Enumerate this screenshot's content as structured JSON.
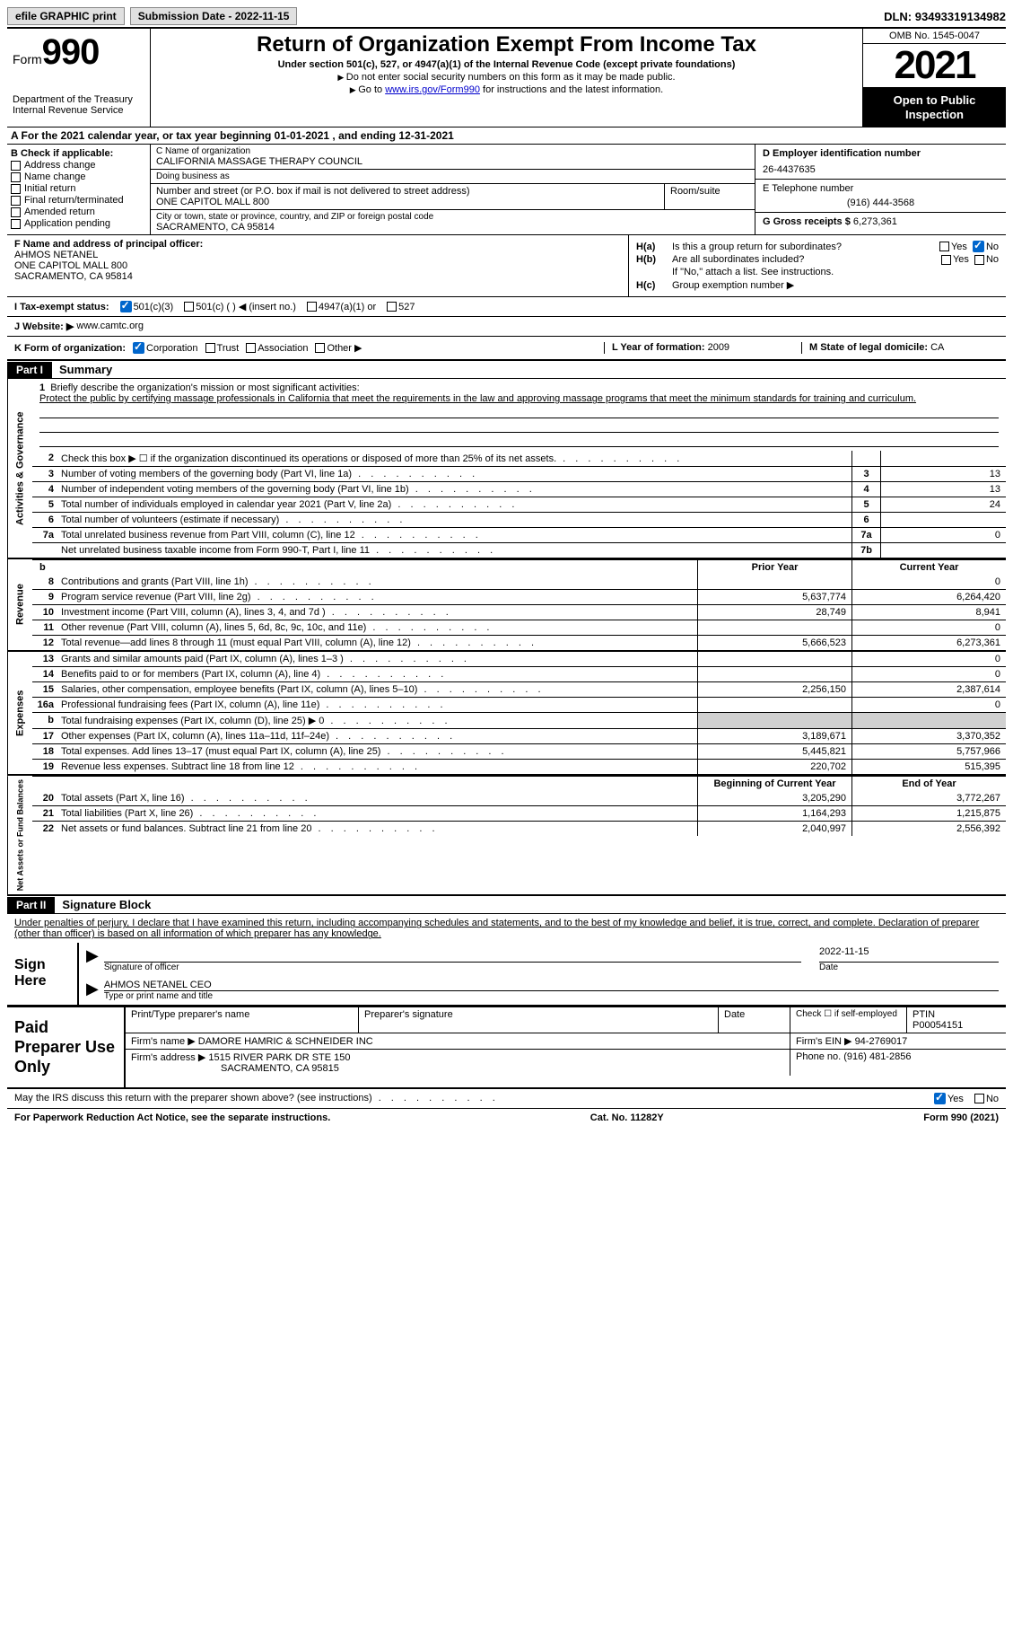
{
  "meta": {
    "dln_label": "DLN:",
    "dln": "93493319134982",
    "efile_btn": "efile GRAPHIC print",
    "sub_date_label": "Submission Date -",
    "sub_date": "2022-11-15",
    "form_word": "Form",
    "form_num": "990",
    "title": "Return of Organization Exempt From Income Tax",
    "subtitle": "Under section 501(c), 527, or 4947(a)(1) of the Internal Revenue Code (except private foundations)",
    "note1": "Do not enter social security numbers on this form as it may be made public.",
    "note2_pre": "Go to ",
    "note2_link": "www.irs.gov/Form990",
    "note2_post": " for instructions and the latest information.",
    "dept": "Department of the Treasury",
    "irs": "Internal Revenue Service",
    "omb": "OMB No. 1545-0047",
    "year": "2021",
    "open_inspect": "Open to Public Inspection"
  },
  "sectionA": {
    "text_pre": "A For the 2021 calendar year, or tax year beginning ",
    "begin": "01-01-2021",
    "mid": " , and ending ",
    "end": "12-31-2021"
  },
  "colB": {
    "header": "B Check if applicable:",
    "items": [
      "Address change",
      "Name change",
      "Initial return",
      "Final return/terminated",
      "Amended return",
      "Application pending"
    ]
  },
  "colC": {
    "name_lbl": "C Name of organization",
    "name": "CALIFORNIA MASSAGE THERAPY COUNCIL",
    "dba_lbl": "Doing business as",
    "dba": "",
    "addr_lbl": "Number and street (or P.O. box if mail is not delivered to street address)",
    "room_lbl": "Room/suite",
    "addr": "ONE CAPITOL MALL 800",
    "city_lbl": "City or town, state or province, country, and ZIP or foreign postal code",
    "city": "SACRAMENTO, CA  95814"
  },
  "colD": {
    "ein_lbl": "D Employer identification number",
    "ein": "26-4437635",
    "tel_lbl": "E Telephone number",
    "tel": "(916) 444-3568",
    "gross_lbl": "G Gross receipts $",
    "gross": "6,273,361"
  },
  "rowF": {
    "lbl": "F Name and address of principal officer:",
    "name": "AHMOS NETANEL",
    "addr1": "ONE CAPITOL MALL 800",
    "addr2": "SACRAMENTO, CA  95814"
  },
  "rowH": {
    "ha_lbl": "H(a)",
    "ha_txt": "Is this a group return for subordinates?",
    "hb_lbl": "H(b)",
    "hb_txt": "Are all subordinates included?",
    "hb_note": "If \"No,\" attach a list. See instructions.",
    "hc_lbl": "H(c)",
    "hc_txt": "Group exemption number ▶",
    "yes": "Yes",
    "no": "No"
  },
  "rowI": {
    "lbl": "I  Tax-exempt status:",
    "opts": [
      "501(c)(3)",
      "501(c) (  ) ◀ (insert no.)",
      "4947(a)(1) or",
      "527"
    ]
  },
  "rowJ": {
    "lbl": "J  Website: ▶",
    "val": "www.camtc.org"
  },
  "rowK": {
    "lbl": "K Form of organization:",
    "opts": [
      "Corporation",
      "Trust",
      "Association",
      "Other ▶"
    ],
    "l_lbl": "L Year of formation:",
    "l_val": "2009",
    "m_lbl": "M State of legal domicile:",
    "m_val": "CA"
  },
  "partI": {
    "tag": "Part I",
    "title": "Summary"
  },
  "briefly": {
    "num": "1",
    "lbl": "Briefly describe the organization's mission or most significant activities:",
    "text": "Protect the public by certifying massage professionals in California that meet the requirements in the law and approving massage programs that meet the minimum standards for training and curriculum."
  },
  "gov_rows": [
    {
      "n": "2",
      "d": "Check this box ▶ ☐ if the organization discontinued its operations or disposed of more than 25% of its net assets.",
      "b": "",
      "v": ""
    },
    {
      "n": "3",
      "d": "Number of voting members of the governing body (Part VI, line 1a)",
      "b": "3",
      "v": "13"
    },
    {
      "n": "4",
      "d": "Number of independent voting members of the governing body (Part VI, line 1b)",
      "b": "4",
      "v": "13"
    },
    {
      "n": "5",
      "d": "Total number of individuals employed in calendar year 2021 (Part V, line 2a)",
      "b": "5",
      "v": "24"
    },
    {
      "n": "6",
      "d": "Total number of volunteers (estimate if necessary)",
      "b": "6",
      "v": ""
    },
    {
      "n": "7a",
      "d": "Total unrelated business revenue from Part VIII, column (C), line 12",
      "b": "7a",
      "v": "0"
    },
    {
      "n": "",
      "d": "Net unrelated business taxable income from Form 990-T, Part I, line 11",
      "b": "7b",
      "v": ""
    }
  ],
  "rev_hdr": {
    "prior": "Prior Year",
    "curr": "Current Year"
  },
  "rev_rows": [
    {
      "n": "8",
      "d": "Contributions and grants (Part VIII, line 1h)",
      "p": "",
      "c": "0"
    },
    {
      "n": "9",
      "d": "Program service revenue (Part VIII, line 2g)",
      "p": "5,637,774",
      "c": "6,264,420"
    },
    {
      "n": "10",
      "d": "Investment income (Part VIII, column (A), lines 3, 4, and 7d )",
      "p": "28,749",
      "c": "8,941"
    },
    {
      "n": "11",
      "d": "Other revenue (Part VIII, column (A), lines 5, 6d, 8c, 9c, 10c, and 11e)",
      "p": "",
      "c": "0"
    },
    {
      "n": "12",
      "d": "Total revenue—add lines 8 through 11 (must equal Part VIII, column (A), line 12)",
      "p": "5,666,523",
      "c": "6,273,361"
    }
  ],
  "exp_rows": [
    {
      "n": "13",
      "d": "Grants and similar amounts paid (Part IX, column (A), lines 1–3 )",
      "p": "",
      "c": "0"
    },
    {
      "n": "14",
      "d": "Benefits paid to or for members (Part IX, column (A), line 4)",
      "p": "",
      "c": "0"
    },
    {
      "n": "15",
      "d": "Salaries, other compensation, employee benefits (Part IX, column (A), lines 5–10)",
      "p": "2,256,150",
      "c": "2,387,614"
    },
    {
      "n": "16a",
      "d": "Professional fundraising fees (Part IX, column (A), line 11e)",
      "p": "",
      "c": "0"
    },
    {
      "n": "b",
      "d": "Total fundraising expenses (Part IX, column (D), line 25) ▶ 0",
      "p": "shade",
      "c": "shade"
    },
    {
      "n": "17",
      "d": "Other expenses (Part IX, column (A), lines 11a–11d, 11f–24e)",
      "p": "3,189,671",
      "c": "3,370,352"
    },
    {
      "n": "18",
      "d": "Total expenses. Add lines 13–17 (must equal Part IX, column (A), line 25)",
      "p": "5,445,821",
      "c": "5,757,966"
    },
    {
      "n": "19",
      "d": "Revenue less expenses. Subtract line 18 from line 12",
      "p": "220,702",
      "c": "515,395"
    }
  ],
  "net_hdr": {
    "begin": "Beginning of Current Year",
    "end": "End of Year"
  },
  "net_rows": [
    {
      "n": "20",
      "d": "Total assets (Part X, line 16)",
      "p": "3,205,290",
      "c": "3,772,267"
    },
    {
      "n": "21",
      "d": "Total liabilities (Part X, line 26)",
      "p": "1,164,293",
      "c": "1,215,875"
    },
    {
      "n": "22",
      "d": "Net assets or fund balances. Subtract line 21 from line 20",
      "p": "2,040,997",
      "c": "2,556,392"
    }
  ],
  "vlabels": {
    "gov": "Activities & Governance",
    "rev": "Revenue",
    "exp": "Expenses",
    "net": "Net Assets or Fund Balances"
  },
  "partII": {
    "tag": "Part II",
    "title": "Signature Block",
    "decl": "Under penalties of perjury, I declare that I have examined this return, including accompanying schedules and statements, and to the best of my knowledge and belief, it is true, correct, and complete. Declaration of preparer (other than officer) is based on all information of which preparer has any knowledge."
  },
  "sign": {
    "label": "Sign Here",
    "sig_cap": "Signature of officer",
    "date": "2022-11-15",
    "date_cap": "Date",
    "name": "AHMOS NETANEL CEO",
    "name_cap": "Type or print name and title"
  },
  "prep": {
    "label": "Paid Preparer Use Only",
    "h1": "Print/Type preparer's name",
    "h2": "Preparer's signature",
    "h3": "Date",
    "h4_pre": "Check ☐ if self-employed",
    "h5": "PTIN",
    "ptin": "P00054151",
    "firm_lbl": "Firm's name  ▶",
    "firm": "DAMORE HAMRIC & SCHNEIDER INC",
    "ein_lbl": "Firm's EIN ▶",
    "ein": "94-2769017",
    "addr_lbl": "Firm's address ▶",
    "addr1": "1515 RIVER PARK DR STE 150",
    "addr2": "SACRAMENTO, CA  95815",
    "phone_lbl": "Phone no.",
    "phone": "(916) 481-2856"
  },
  "footer": {
    "discuss": "May the IRS discuss this return with the preparer shown above? (see instructions)",
    "yes": "Yes",
    "no": "No",
    "paperwork": "For Paperwork Reduction Act Notice, see the separate instructions.",
    "cat": "Cat. No. 11282Y",
    "form": "Form 990 (2021)"
  }
}
